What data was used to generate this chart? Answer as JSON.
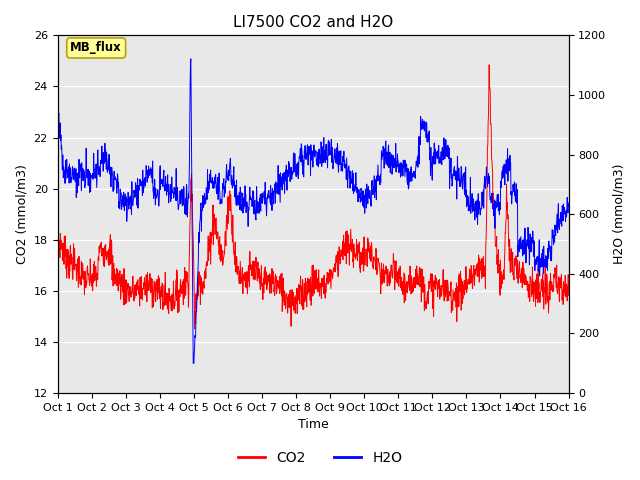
{
  "title": "LI7500 CO2 and H2O",
  "xlabel": "Time",
  "ylabel_left": "CO2 (mmol/m3)",
  "ylabel_right": "H2O (mmol/m3)",
  "ylim_left": [
    12,
    26
  ],
  "ylim_right": [
    0,
    1200
  ],
  "yticks_left": [
    12,
    14,
    16,
    18,
    20,
    22,
    24,
    26
  ],
  "yticks_right": [
    0,
    200,
    400,
    600,
    800,
    1000,
    1200
  ],
  "x_tick_labels": [
    "Oct 1",
    "Oct 2",
    "Oct 3",
    "Oct 4",
    "Oct 5",
    "Oct 6",
    "Oct 7",
    "Oct 8",
    "Oct 9",
    "Oct 10",
    "Oct 11",
    "Oct 12",
    "Oct 13",
    "Oct 14",
    "Oct 15",
    "Oct 16"
  ],
  "co2_color": "#ff0000",
  "h2o_color": "#0000ff",
  "plot_bg_color": "#e8e8e8",
  "annotation_text": "MB_flux",
  "annotation_bg": "#ffff99",
  "annotation_border": "#b8a000",
  "legend_co2": "CO2",
  "legend_h2o": "H2O",
  "n_points": 1500,
  "n_days": 15
}
